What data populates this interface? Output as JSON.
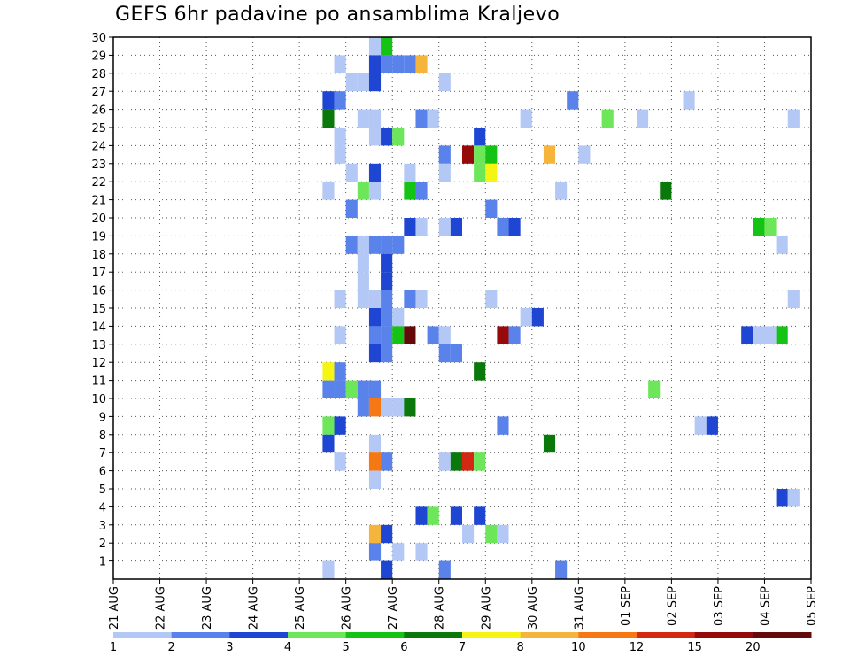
{
  "chart_data": {
    "type": "heatmap",
    "title": "GEFS 6hr padavine po ansamblima Kraljevo",
    "y_ticks": [
      "1",
      "2",
      "3",
      "4",
      "5",
      "6",
      "7",
      "8",
      "9",
      "10",
      "11",
      "12",
      "13",
      "14",
      "15",
      "16",
      "17",
      "18",
      "19",
      "20",
      "21",
      "22",
      "23",
      "24",
      "25",
      "26",
      "27",
      "28",
      "29",
      "30"
    ],
    "x_ticks": [
      "21 AUG",
      "22 AUG",
      "23 AUG",
      "24 AUG",
      "25 AUG",
      "26 AUG",
      "27 AUG",
      "28 AUG",
      "29 AUG",
      "30 AUG",
      "31 AUG",
      "01 SEP",
      "02 SEP",
      "03 SEP",
      "04 SEP",
      "05 SEP"
    ],
    "legend": {
      "labels": [
        "1",
        "2",
        "3",
        "4",
        "5",
        "6",
        "7",
        "8",
        "10",
        "12",
        "15",
        "20"
      ],
      "colors": [
        "#b4c8f5",
        "#5a82eb",
        "#1e46d2",
        "#6ee65a",
        "#14c314",
        "#0a780a",
        "#f5f514",
        "#f5b43c",
        "#f57814",
        "#d22814",
        "#960a0a",
        "#640a0a"
      ]
    },
    "bins": [
      {
        "min": 1,
        "max": 2,
        "color": "#b4c8f5"
      },
      {
        "min": 2,
        "max": 3,
        "color": "#5a82eb"
      },
      {
        "min": 3,
        "max": 4,
        "color": "#1e46d2"
      },
      {
        "min": 4,
        "max": 5,
        "color": "#6ee65a"
      },
      {
        "min": 5,
        "max": 6,
        "color": "#14c314"
      },
      {
        "min": 6,
        "max": 7,
        "color": "#0a780a"
      },
      {
        "min": 7,
        "max": 8,
        "color": "#f5f514"
      },
      {
        "min": 8,
        "max": 10,
        "color": "#f5b43c"
      },
      {
        "min": 10,
        "max": 12,
        "color": "#f57814"
      },
      {
        "min": 12,
        "max": 15,
        "color": "#d22814"
      },
      {
        "min": 15,
        "max": 20,
        "color": "#960a0a"
      },
      {
        "min": 20,
        "max": null,
        "color": "#640a0a"
      }
    ],
    "cells": [
      {
        "t": 22,
        "m": 30,
        "c": 1
      },
      {
        "t": 23,
        "m": 30,
        "c": 5
      },
      {
        "t": 19,
        "m": 29,
        "c": 1
      },
      {
        "t": 22,
        "m": 29,
        "c": 3
      },
      {
        "t": 23,
        "m": 29,
        "c": 2
      },
      {
        "t": 24,
        "m": 29,
        "c": 2
      },
      {
        "t": 25,
        "m": 29,
        "c": 2
      },
      {
        "t": 26,
        "m": 29,
        "c": 8
      },
      {
        "t": 20,
        "m": 28,
        "c": 1
      },
      {
        "t": 21,
        "m": 28,
        "c": 1
      },
      {
        "t": 22,
        "m": 28,
        "c": 3
      },
      {
        "t": 28,
        "m": 28,
        "c": 1
      },
      {
        "t": 18,
        "m": 27,
        "c": 3
      },
      {
        "t": 19,
        "m": 27,
        "c": 2
      },
      {
        "t": 39,
        "m": 27,
        "c": 2
      },
      {
        "t": 49,
        "m": 27,
        "c": 1
      },
      {
        "t": 18,
        "m": 26,
        "c": 6
      },
      {
        "t": 21,
        "m": 26,
        "c": 1
      },
      {
        "t": 22,
        "m": 26,
        "c": 1
      },
      {
        "t": 26,
        "m": 26,
        "c": 2
      },
      {
        "t": 27,
        "m": 26,
        "c": 1
      },
      {
        "t": 35,
        "m": 26,
        "c": 1
      },
      {
        "t": 42,
        "m": 26,
        "c": 4
      },
      {
        "t": 45,
        "m": 26,
        "c": 1
      },
      {
        "t": 58,
        "m": 26,
        "c": 1
      },
      {
        "t": 19,
        "m": 25,
        "c": 1
      },
      {
        "t": 22,
        "m": 25,
        "c": 1
      },
      {
        "t": 23,
        "m": 25,
        "c": 3
      },
      {
        "t": 24,
        "m": 25,
        "c": 4
      },
      {
        "t": 31,
        "m": 25,
        "c": 3
      },
      {
        "t": 19,
        "m": 24,
        "c": 1
      },
      {
        "t": 28,
        "m": 24,
        "c": 2
      },
      {
        "t": 30,
        "m": 24,
        "c": 11
      },
      {
        "t": 31,
        "m": 24,
        "c": 4
      },
      {
        "t": 32,
        "m": 24,
        "c": 5
      },
      {
        "t": 37,
        "m": 24,
        "c": 8
      },
      {
        "t": 40,
        "m": 24,
        "c": 1
      },
      {
        "t": 20,
        "m": 23,
        "c": 1
      },
      {
        "t": 22,
        "m": 23,
        "c": 3
      },
      {
        "t": 25,
        "m": 23,
        "c": 1
      },
      {
        "t": 28,
        "m": 23,
        "c": 1
      },
      {
        "t": 31,
        "m": 23,
        "c": 4
      },
      {
        "t": 32,
        "m": 23,
        "c": 7
      },
      {
        "t": 18,
        "m": 22,
        "c": 1
      },
      {
        "t": 21,
        "m": 22,
        "c": 4
      },
      {
        "t": 22,
        "m": 22,
        "c": 1
      },
      {
        "t": 25,
        "m": 22,
        "c": 5
      },
      {
        "t": 26,
        "m": 22,
        "c": 2
      },
      {
        "t": 38,
        "m": 22,
        "c": 1
      },
      {
        "t": 47,
        "m": 22,
        "c": 6
      },
      {
        "t": 20,
        "m": 21,
        "c": 2
      },
      {
        "t": 32,
        "m": 21,
        "c": 2
      },
      {
        "t": 25,
        "m": 20,
        "c": 3
      },
      {
        "t": 26,
        "m": 20,
        "c": 1
      },
      {
        "t": 28,
        "m": 20,
        "c": 1
      },
      {
        "t": 29,
        "m": 20,
        "c": 3
      },
      {
        "t": 33,
        "m": 20,
        "c": 2
      },
      {
        "t": 34,
        "m": 20,
        "c": 3
      },
      {
        "t": 55,
        "m": 20,
        "c": 5
      },
      {
        "t": 56,
        "m": 20,
        "c": 4
      },
      {
        "t": 20,
        "m": 19,
        "c": 2
      },
      {
        "t": 21,
        "m": 19,
        "c": 1
      },
      {
        "t": 22,
        "m": 19,
        "c": 2
      },
      {
        "t": 23,
        "m": 19,
        "c": 2
      },
      {
        "t": 24,
        "m": 19,
        "c": 2
      },
      {
        "t": 57,
        "m": 19,
        "c": 1
      },
      {
        "t": 21,
        "m": 18,
        "c": 1
      },
      {
        "t": 23,
        "m": 18,
        "c": 3
      },
      {
        "t": 21,
        "m": 17,
        "c": 1
      },
      {
        "t": 23,
        "m": 17,
        "c": 3
      },
      {
        "t": 19,
        "m": 16,
        "c": 1
      },
      {
        "t": 21,
        "m": 16,
        "c": 1
      },
      {
        "t": 22,
        "m": 16,
        "c": 1
      },
      {
        "t": 23,
        "m": 16,
        "c": 2
      },
      {
        "t": 25,
        "m": 16,
        "c": 2
      },
      {
        "t": 26,
        "m": 16,
        "c": 1
      },
      {
        "t": 32,
        "m": 16,
        "c": 1
      },
      {
        "t": 58,
        "m": 16,
        "c": 1
      },
      {
        "t": 22,
        "m": 15,
        "c": 3
      },
      {
        "t": 23,
        "m": 15,
        "c": 2
      },
      {
        "t": 24,
        "m": 15,
        "c": 1
      },
      {
        "t": 35,
        "m": 15,
        "c": 1
      },
      {
        "t": 36,
        "m": 15,
        "c": 3
      },
      {
        "t": 19,
        "m": 14,
        "c": 1
      },
      {
        "t": 22,
        "m": 14,
        "c": 2
      },
      {
        "t": 23,
        "m": 14,
        "c": 2
      },
      {
        "t": 24,
        "m": 14,
        "c": 5
      },
      {
        "t": 25,
        "m": 14,
        "c": 12
      },
      {
        "t": 27,
        "m": 14,
        "c": 2
      },
      {
        "t": 28,
        "m": 14,
        "c": 1
      },
      {
        "t": 33,
        "m": 14,
        "c": 11
      },
      {
        "t": 34,
        "m": 14,
        "c": 2
      },
      {
        "t": 54,
        "m": 14,
        "c": 3
      },
      {
        "t": 55,
        "m": 14,
        "c": 1
      },
      {
        "t": 56,
        "m": 14,
        "c": 1
      },
      {
        "t": 57,
        "m": 14,
        "c": 5
      },
      {
        "t": 22,
        "m": 13,
        "c": 3
      },
      {
        "t": 23,
        "m": 13,
        "c": 2
      },
      {
        "t": 28,
        "m": 13,
        "c": 2
      },
      {
        "t": 29,
        "m": 13,
        "c": 2
      },
      {
        "t": 18,
        "m": 12,
        "c": 7
      },
      {
        "t": 19,
        "m": 12,
        "c": 2
      },
      {
        "t": 31,
        "m": 12,
        "c": 6
      },
      {
        "t": 18,
        "m": 11,
        "c": 2
      },
      {
        "t": 19,
        "m": 11,
        "c": 2
      },
      {
        "t": 20,
        "m": 11,
        "c": 4
      },
      {
        "t": 21,
        "m": 11,
        "c": 2
      },
      {
        "t": 22,
        "m": 11,
        "c": 2
      },
      {
        "t": 46,
        "m": 11,
        "c": 4
      },
      {
        "t": 21,
        "m": 10,
        "c": 2
      },
      {
        "t": 22,
        "m": 10,
        "c": 9
      },
      {
        "t": 23,
        "m": 10,
        "c": 1
      },
      {
        "t": 24,
        "m": 10,
        "c": 1
      },
      {
        "t": 25,
        "m": 10,
        "c": 6
      },
      {
        "t": 18,
        "m": 9,
        "c": 4
      },
      {
        "t": 19,
        "m": 9,
        "c": 3
      },
      {
        "t": 33,
        "m": 9,
        "c": 2
      },
      {
        "t": 50,
        "m": 9,
        "c": 1
      },
      {
        "t": 51,
        "m": 9,
        "c": 3
      },
      {
        "t": 18,
        "m": 8,
        "c": 3
      },
      {
        "t": 22,
        "m": 8,
        "c": 1
      },
      {
        "t": 37,
        "m": 8,
        "c": 6
      },
      {
        "t": 19,
        "m": 7,
        "c": 1
      },
      {
        "t": 22,
        "m": 7,
        "c": 9
      },
      {
        "t": 23,
        "m": 7,
        "c": 2
      },
      {
        "t": 28,
        "m": 7,
        "c": 1
      },
      {
        "t": 29,
        "m": 7,
        "c": 6
      },
      {
        "t": 30,
        "m": 7,
        "c": 10
      },
      {
        "t": 31,
        "m": 7,
        "c": 4
      },
      {
        "t": 22,
        "m": 6,
        "c": 1
      },
      {
        "t": 57,
        "m": 5,
        "c": 3
      },
      {
        "t": 58,
        "m": 5,
        "c": 1
      },
      {
        "t": 26,
        "m": 4,
        "c": 3
      },
      {
        "t": 27,
        "m": 4,
        "c": 4
      },
      {
        "t": 29,
        "m": 4,
        "c": 3
      },
      {
        "t": 31,
        "m": 4,
        "c": 3
      },
      {
        "t": 22,
        "m": 3,
        "c": 8
      },
      {
        "t": 23,
        "m": 3,
        "c": 3
      },
      {
        "t": 30,
        "m": 3,
        "c": 1
      },
      {
        "t": 32,
        "m": 3,
        "c": 4
      },
      {
        "t": 33,
        "m": 3,
        "c": 1
      },
      {
        "t": 22,
        "m": 2,
        "c": 2
      },
      {
        "t": 24,
        "m": 2,
        "c": 1
      },
      {
        "t": 26,
        "m": 2,
        "c": 1
      },
      {
        "t": 18,
        "m": 1,
        "c": 1
      },
      {
        "t": 23,
        "m": 1,
        "c": 3
      },
      {
        "t": 28,
        "m": 1,
        "c": 2
      },
      {
        "t": 38,
        "m": 1,
        "c": 2
      }
    ]
  }
}
